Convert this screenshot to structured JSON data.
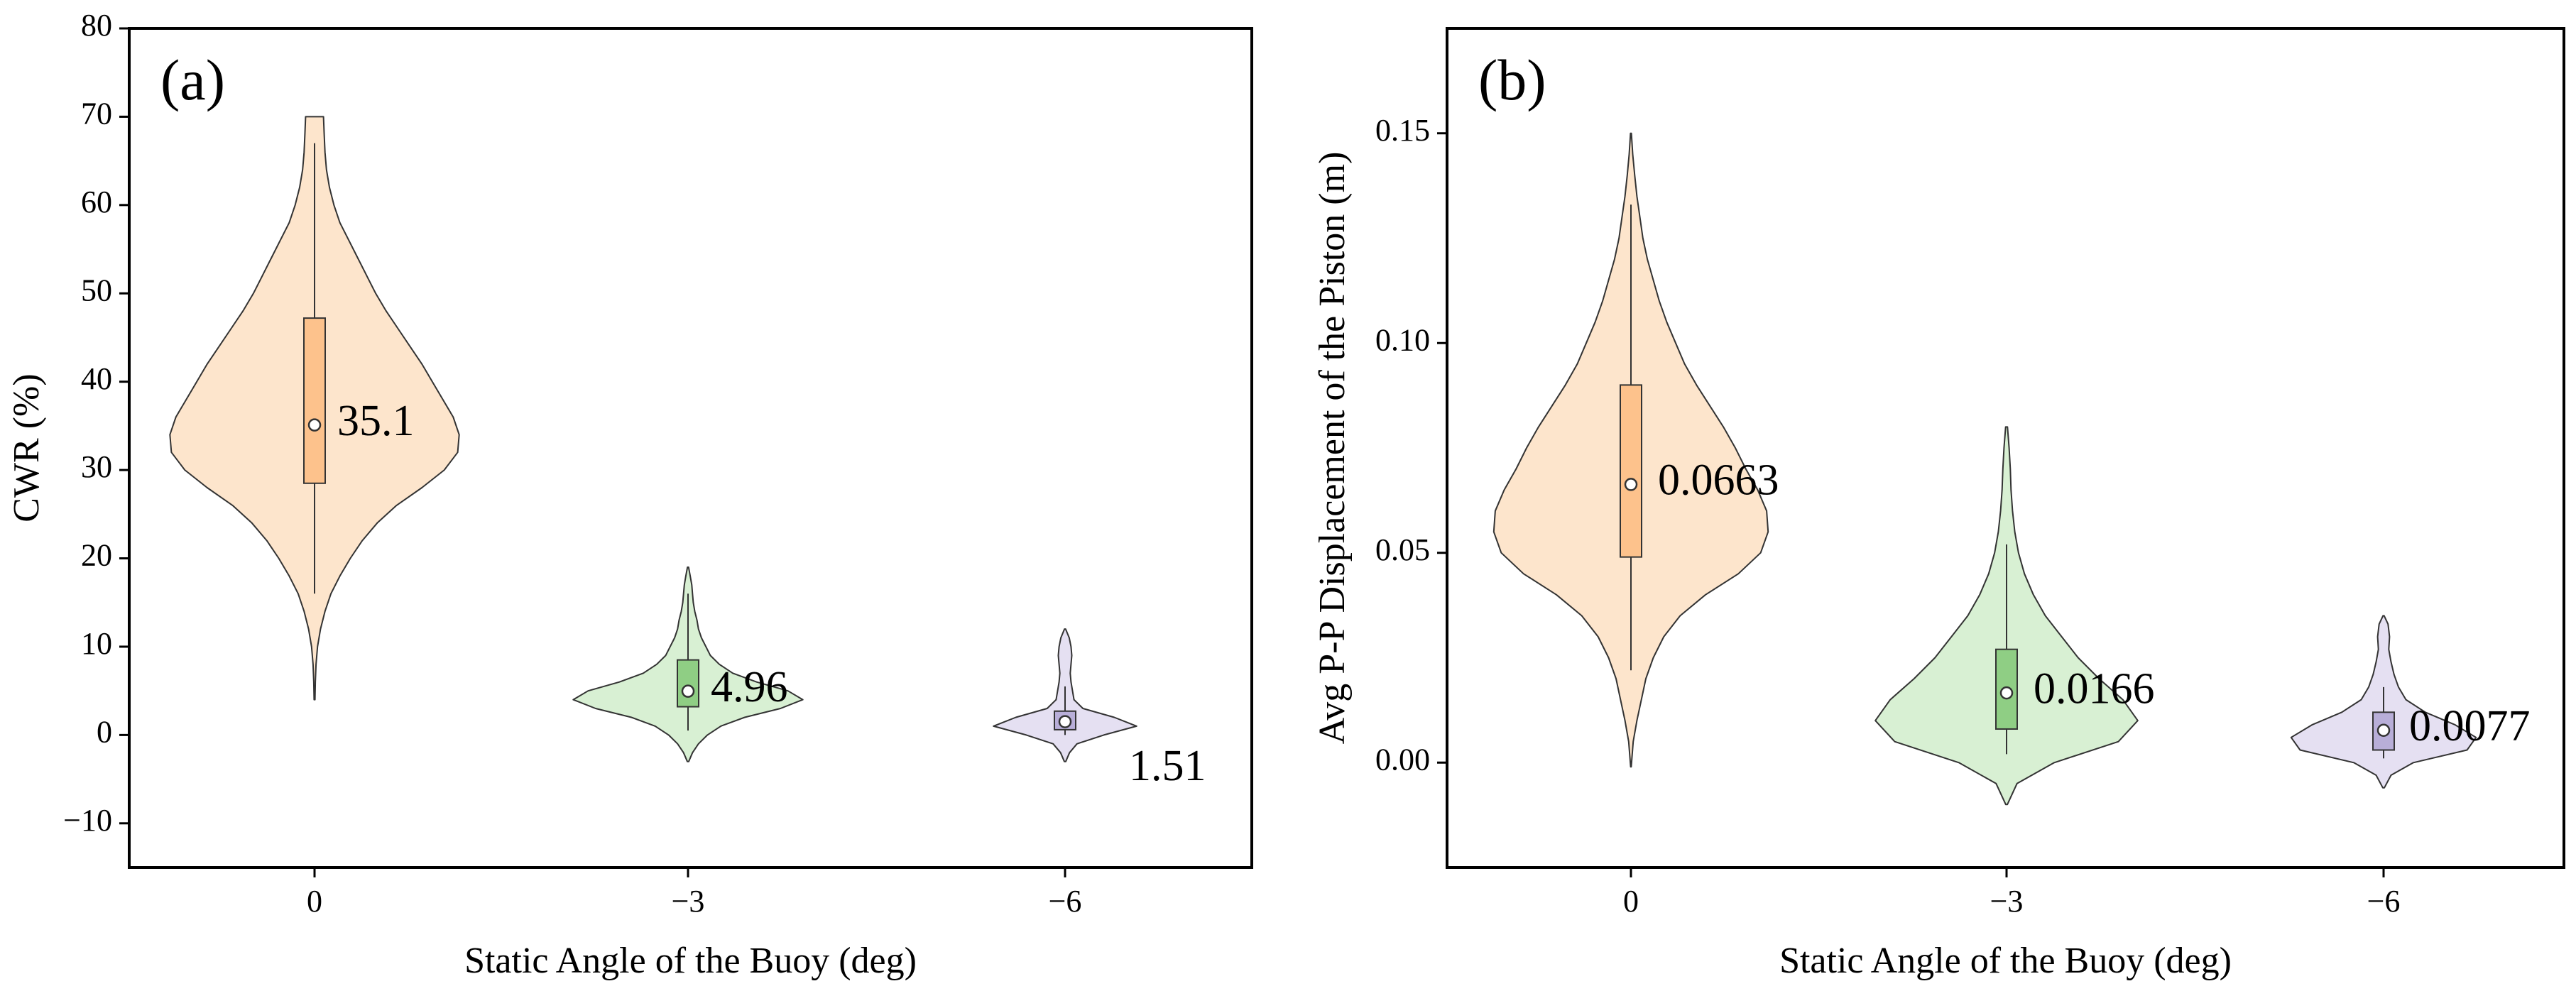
{
  "chart_data": [
    {
      "type": "violin",
      "panel_label": "(a)",
      "xlabel": "Static Angle of the Buoy (deg)",
      "ylabel": "CWR (%)",
      "ylim": [
        -15,
        80
      ],
      "yticks": [
        -10,
        0,
        10,
        20,
        30,
        40,
        50,
        60,
        70,
        80
      ],
      "ytick_labels": [
        "−10",
        "0",
        "10",
        "20",
        "30",
        "40",
        "50",
        "60",
        "70",
        "80"
      ],
      "categories": [
        "0",
        "−3",
        "−6"
      ],
      "grid": false,
      "groups": [
        {
          "category": "0",
          "fill": "#fde5cc",
          "box_fill": "#fdc28c",
          "violin_min": 4,
          "violin_max": 70,
          "profile": [
            [
              4,
              0.003
            ],
            [
              6,
              0.005
            ],
            [
              8,
              0.01
            ],
            [
              10,
              0.02
            ],
            [
              12,
              0.04
            ],
            [
              14,
              0.07
            ],
            [
              16,
              0.11
            ],
            [
              18,
              0.17
            ],
            [
              20,
              0.24
            ],
            [
              22,
              0.32
            ],
            [
              24,
              0.42
            ],
            [
              26,
              0.55
            ],
            [
              28,
              0.72
            ],
            [
              30,
              0.87
            ],
            [
              32,
              0.96
            ],
            [
              34,
              0.97
            ],
            [
              36,
              0.93
            ],
            [
              38,
              0.86
            ],
            [
              40,
              0.79
            ],
            [
              42,
              0.72
            ],
            [
              44,
              0.64
            ],
            [
              46,
              0.56
            ],
            [
              48,
              0.48
            ],
            [
              50,
              0.41
            ],
            [
              52,
              0.35
            ],
            [
              54,
              0.29
            ],
            [
              56,
              0.23
            ],
            [
              58,
              0.17
            ],
            [
              60,
              0.13
            ],
            [
              62,
              0.1
            ],
            [
              64,
              0.08
            ],
            [
              66,
              0.07
            ],
            [
              68,
              0.065
            ],
            [
              70,
              0.06
            ]
          ],
          "whisker_low": 16,
          "whisker_high": 67,
          "q1": 28.5,
          "q3": 47.2,
          "mean": 35.1,
          "label": "35.1"
        },
        {
          "category": "−3",
          "fill": "#d8f0d3",
          "box_fill": "#8fce84",
          "violin_min": -3,
          "violin_max": 19,
          "profile": [
            [
              -3,
              0.005
            ],
            [
              -2,
              0.03
            ],
            [
              -1,
              0.07
            ],
            [
              0,
              0.13
            ],
            [
              1,
              0.22
            ],
            [
              2,
              0.38
            ],
            [
              3,
              0.62
            ],
            [
              4,
              0.77
            ],
            [
              5,
              0.67
            ],
            [
              6,
              0.46
            ],
            [
              7,
              0.3
            ],
            [
              8,
              0.21
            ],
            [
              9,
              0.15
            ],
            [
              10,
              0.12
            ],
            [
              11,
              0.09
            ],
            [
              12,
              0.07
            ],
            [
              13,
              0.06
            ],
            [
              14,
              0.045
            ],
            [
              15,
              0.035
            ],
            [
              16,
              0.03
            ],
            [
              17,
              0.025
            ],
            [
              18,
              0.015
            ],
            [
              19,
              0.004
            ]
          ],
          "whisker_low": 0.5,
          "whisker_high": 16,
          "q1": 3.2,
          "q3": 8.5,
          "mean": 4.96,
          "label": "4.96"
        },
        {
          "category": "−6",
          "fill": "#e5e0f2",
          "box_fill": "#b8aed8",
          "violin_min": -3,
          "violin_max": 12,
          "profile": [
            [
              -3,
              0.005
            ],
            [
              -2,
              0.03
            ],
            [
              -1,
              0.08
            ],
            [
              0,
              0.26
            ],
            [
              1,
              0.48
            ],
            [
              2,
              0.33
            ],
            [
              3,
              0.12
            ],
            [
              4,
              0.06
            ],
            [
              5,
              0.05
            ],
            [
              6,
              0.04
            ],
            [
              7,
              0.035
            ],
            [
              8,
              0.04
            ],
            [
              9,
              0.045
            ],
            [
              10,
              0.04
            ],
            [
              11,
              0.028
            ],
            [
              12,
              0.004
            ]
          ],
          "whisker_low": 0,
          "whisker_high": 5.5,
          "q1": 0.6,
          "q3": 2.7,
          "mean": 1.51,
          "label": "1.51"
        }
      ]
    },
    {
      "type": "violin",
      "panel_label": "(b)",
      "xlabel": "Static Angle of the Buoy (deg)",
      "ylabel": "Avg P-P Displacement of the Piston  (m)",
      "ylim": [
        -0.025,
        0.175
      ],
      "yticks": [
        0,
        0.05,
        0.1,
        0.15
      ],
      "ytick_labels": [
        "0.00",
        "0.05",
        "0.10",
        "0.15"
      ],
      "categories": [
        "0",
        "−3",
        "−6"
      ],
      "grid": false,
      "groups": [
        {
          "category": "0",
          "fill": "#fde5cc",
          "box_fill": "#fdc28c",
          "violin_min": -0.001,
          "violin_max": 0.15,
          "profile": [
            [
              -0.001,
              0.002
            ],
            [
              0.005,
              0.015
            ],
            [
              0.01,
              0.04
            ],
            [
              0.015,
              0.07
            ],
            [
              0.02,
              0.1
            ],
            [
              0.025,
              0.15
            ],
            [
              0.03,
              0.22
            ],
            [
              0.035,
              0.33
            ],
            [
              0.04,
              0.5
            ],
            [
              0.045,
              0.72
            ],
            [
              0.05,
              0.87
            ],
            [
              0.055,
              0.92
            ],
            [
              0.06,
              0.91
            ],
            [
              0.065,
              0.85
            ],
            [
              0.07,
              0.77
            ],
            [
              0.075,
              0.7
            ],
            [
              0.08,
              0.62
            ],
            [
              0.085,
              0.53
            ],
            [
              0.09,
              0.44
            ],
            [
              0.095,
              0.36
            ],
            [
              0.1,
              0.3
            ],
            [
              0.105,
              0.24
            ],
            [
              0.11,
              0.19
            ],
            [
              0.115,
              0.15
            ],
            [
              0.12,
              0.11
            ],
            [
              0.125,
              0.08
            ],
            [
              0.13,
              0.06
            ],
            [
              0.135,
              0.04
            ],
            [
              0.14,
              0.025
            ],
            [
              0.145,
              0.012
            ],
            [
              0.15,
              0.003
            ]
          ],
          "whisker_low": 0.022,
          "whisker_high": 0.133,
          "q1": 0.049,
          "q3": 0.09,
          "mean": 0.0663,
          "label": "0.0663"
        },
        {
          "category": "−3",
          "fill": "#d8f0d3",
          "box_fill": "#8fce84",
          "violin_min": -0.01,
          "violin_max": 0.081,
          "profile": [
            [
              -0.01,
              0.005
            ],
            [
              -0.005,
              0.07
            ],
            [
              0.0,
              0.32
            ],
            [
              0.005,
              0.75
            ],
            [
              0.01,
              0.88
            ],
            [
              0.015,
              0.78
            ],
            [
              0.02,
              0.62
            ],
            [
              0.025,
              0.48
            ],
            [
              0.03,
              0.37
            ],
            [
              0.035,
              0.26
            ],
            [
              0.04,
              0.18
            ],
            [
              0.045,
              0.12
            ],
            [
              0.05,
              0.08
            ],
            [
              0.055,
              0.055
            ],
            [
              0.06,
              0.04
            ],
            [
              0.065,
              0.03
            ],
            [
              0.07,
              0.025
            ],
            [
              0.075,
              0.017
            ],
            [
              0.08,
              0.006
            ]
          ],
          "whisker_low": 0.002,
          "whisker_high": 0.052,
          "q1": 0.008,
          "q3": 0.027,
          "mean": 0.0166,
          "label": "0.0166"
        },
        {
          "category": "−6",
          "fill": "#e5e0f2",
          "box_fill": "#b8aed8",
          "violin_min": -0.006,
          "violin_max": 0.035,
          "profile": [
            [
              -0.006,
              0.005
            ],
            [
              -0.003,
              0.05
            ],
            [
              0.0,
              0.2
            ],
            [
              0.003,
              0.56
            ],
            [
              0.006,
              0.62
            ],
            [
              0.009,
              0.48
            ],
            [
              0.012,
              0.28
            ],
            [
              0.015,
              0.15
            ],
            [
              0.018,
              0.1
            ],
            [
              0.021,
              0.07
            ],
            [
              0.024,
              0.05
            ],
            [
              0.027,
              0.035
            ],
            [
              0.03,
              0.04
            ],
            [
              0.033,
              0.03
            ],
            [
              0.035,
              0.004
            ]
          ],
          "whisker_low": 0.001,
          "whisker_high": 0.018,
          "q1": 0.003,
          "q3": 0.012,
          "mean": 0.0077,
          "label": "0.0077"
        }
      ]
    }
  ]
}
